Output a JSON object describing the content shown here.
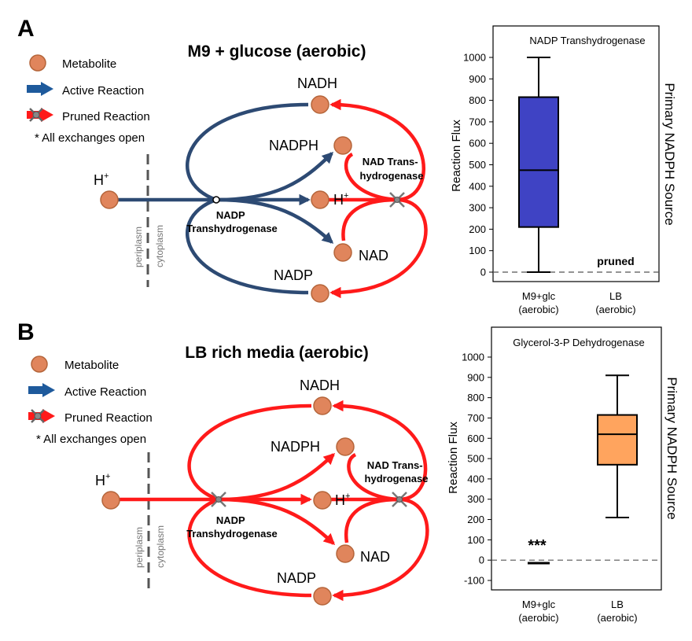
{
  "colors": {
    "active": "#2d4a73",
    "pruned": "#ff1a1a",
    "metabolite_fill": "#e0855c",
    "metabolite_stroke": "#b5653a",
    "box_a": "#3f43c4",
    "box_b": "#ffa45e",
    "dashed": "#555555",
    "x_mark": "#777777"
  },
  "panels": [
    {
      "letter": "A",
      "title": "M9 + glucose (aerobic)",
      "legend": {
        "metabolite": "Metabolite",
        "active": "Active Reaction",
        "pruned": "Pruned Reaction",
        "note": "* All exchanges open"
      },
      "nodes": {
        "h_left": "H",
        "h_right": "H",
        "plus": "+",
        "nadh": "NADH",
        "nadph": "NADPH",
        "nad": "NAD",
        "nadp": "NADP"
      },
      "membrane": {
        "periplasm": "periplasm",
        "cytoplasm": "cytoplasm"
      },
      "reactions": {
        "nadp_line1": "NADP",
        "nadp_line2": "Transhydrogenase",
        "nad_line1": "NAD Trans-",
        "nad_line2": "hydrogenase"
      },
      "chart_data": {
        "type": "box",
        "title": "NADP Transhydrogenase",
        "ylabel": "Reaction Flux",
        "side_label": "Primary NADPH Source",
        "ylim": [
          0,
          1000
        ],
        "yticks": [
          0,
          100,
          200,
          300,
          400,
          500,
          600,
          700,
          800,
          900,
          1000
        ],
        "categories": [
          [
            "M9+glc",
            "(aerobic)"
          ],
          [
            "LB",
            "(aerobic)"
          ]
        ],
        "boxes": [
          {
            "category": "M9+glc",
            "min": 0,
            "q1": 210,
            "median": 475,
            "q3": 815,
            "max": 1000
          }
        ],
        "annotations": [
          {
            "category": "LB",
            "text": "pruned"
          }
        ]
      }
    },
    {
      "letter": "B",
      "title": "LB rich media (aerobic)",
      "legend": {
        "metabolite": "Metabolite",
        "active": "Active Reaction",
        "pruned": "Pruned Reaction",
        "note": "* All exchanges open"
      },
      "nodes": {
        "h_left": "H",
        "h_right": "H",
        "plus": "+",
        "nadh": "NADH",
        "nadph": "NADPH",
        "nad": "NAD",
        "nadp": "NADP"
      },
      "membrane": {
        "periplasm": "periplasm",
        "cytoplasm": "cytoplasm"
      },
      "reactions": {
        "nadp_line1": "NADP",
        "nadp_line2": "Transhydrogenase",
        "nad_line1": "NAD Trans-",
        "nad_line2": "hydrogenase"
      },
      "chart_data": {
        "type": "box",
        "title": "Glycerol-3-P Dehydrogenase",
        "ylabel": "Reaction Flux",
        "side_label": "Primary NADPH Source",
        "ylim": [
          -100,
          1000
        ],
        "yticks": [
          -100,
          0,
          100,
          200,
          300,
          400,
          500,
          600,
          700,
          800,
          900,
          1000
        ],
        "categories": [
          [
            "M9+glc",
            "(aerobic)"
          ],
          [
            "LB",
            "(aerobic)"
          ]
        ],
        "boxes": [
          {
            "category": "M9+glc",
            "min": -15,
            "q1": -15,
            "median": -15,
            "q3": -15,
            "max": -15
          },
          {
            "category": "LB",
            "min": 210,
            "q1": 470,
            "median": 620,
            "q3": 715,
            "max": 910
          }
        ],
        "annotations": [
          {
            "category": "M9+glc",
            "text": "***"
          }
        ]
      }
    }
  ]
}
